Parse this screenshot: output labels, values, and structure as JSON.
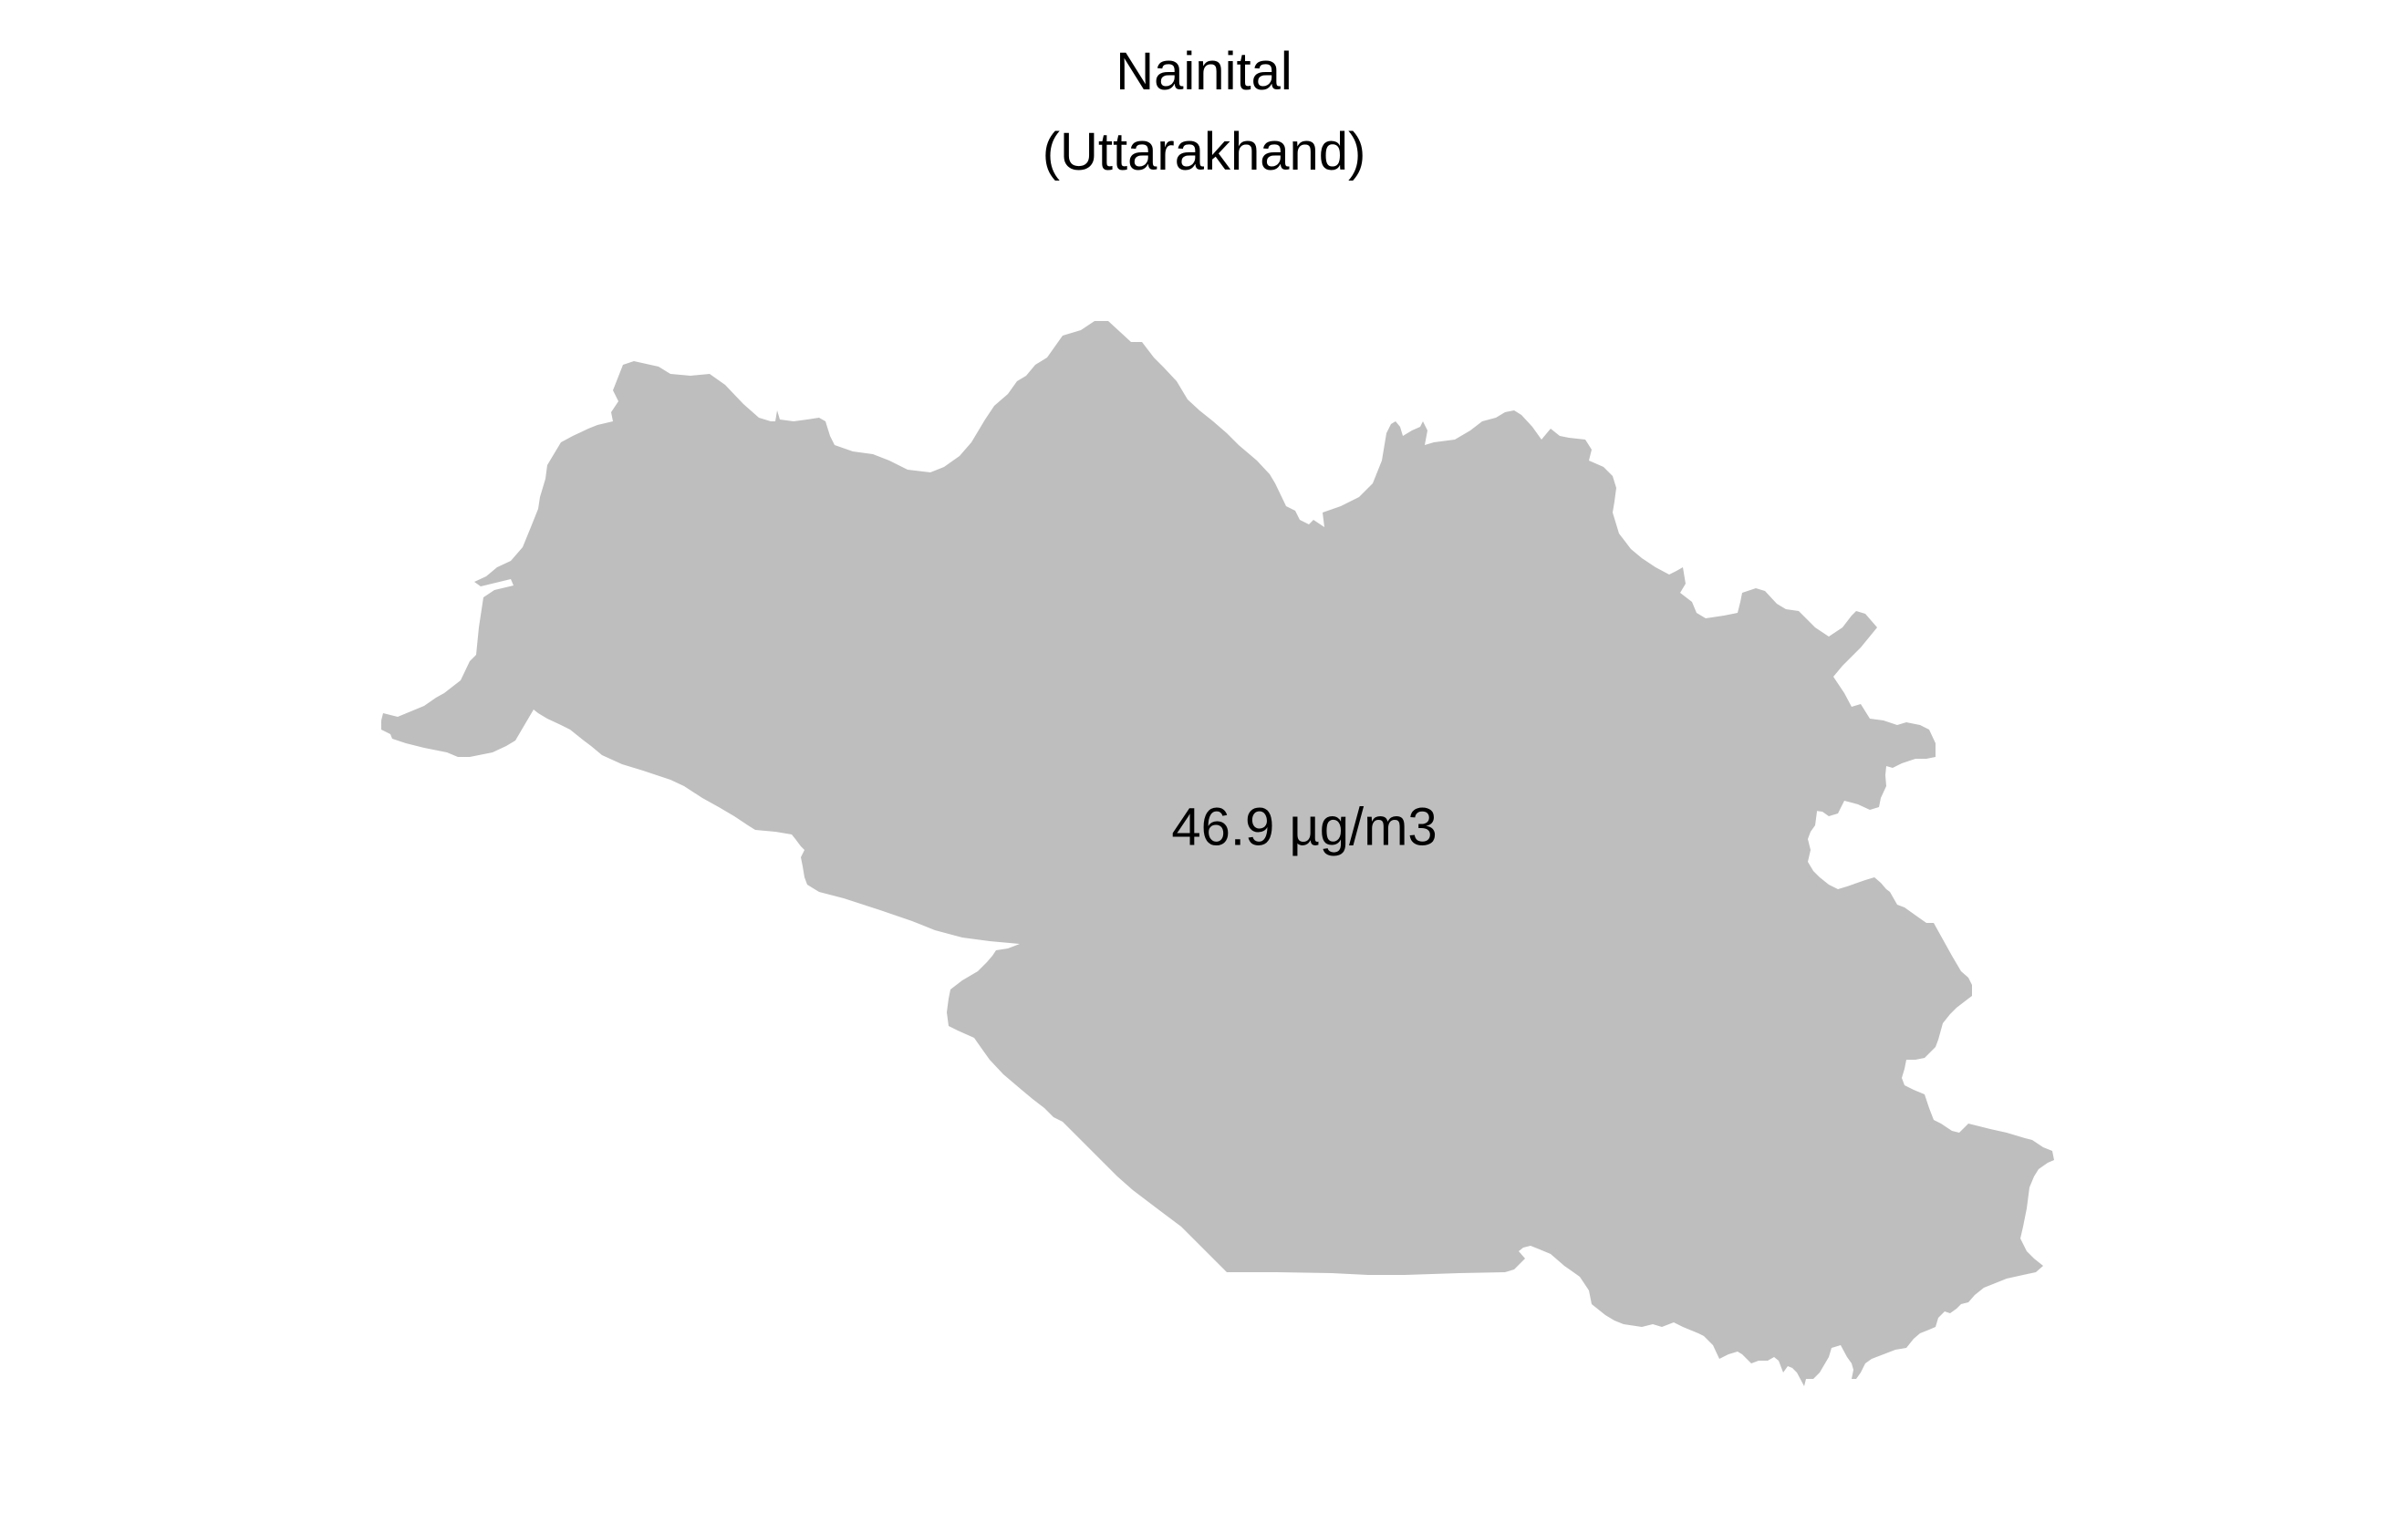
{
  "map": {
    "title": "Nainital",
    "subtitle": "(Uttarakhand)",
    "region_label": "46.9 µg/m3",
    "region_fill": "#bebebe",
    "background": "#ffffff",
    "text_color": "#000000"
  }
}
